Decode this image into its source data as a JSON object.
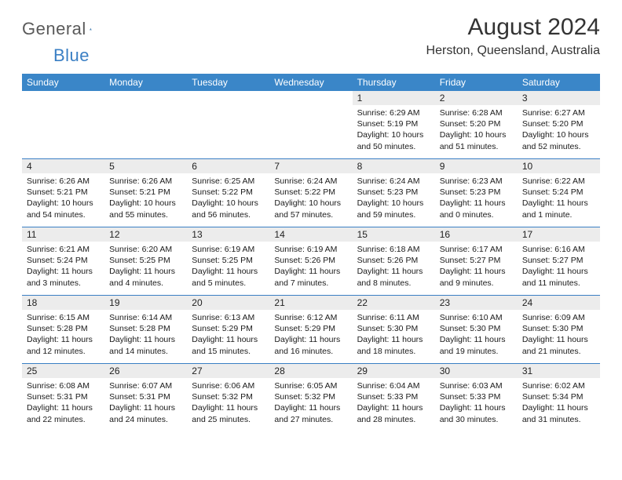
{
  "logo": {
    "word1": "General",
    "word2": "Blue"
  },
  "title": "August 2024",
  "location": "Herston, Queensland, Australia",
  "colors": {
    "header_bg": "#3a86c8",
    "daynum_bg": "#ececec",
    "rule": "#3a7fc4",
    "logo_gray": "#5a5a5a",
    "logo_blue": "#3a7fc4"
  },
  "weekdays": [
    "Sunday",
    "Monday",
    "Tuesday",
    "Wednesday",
    "Thursday",
    "Friday",
    "Saturday"
  ],
  "weeks": [
    [
      {
        "day": "",
        "sunrise": "",
        "sunset": "",
        "daylight": ""
      },
      {
        "day": "",
        "sunrise": "",
        "sunset": "",
        "daylight": ""
      },
      {
        "day": "",
        "sunrise": "",
        "sunset": "",
        "daylight": ""
      },
      {
        "day": "",
        "sunrise": "",
        "sunset": "",
        "daylight": ""
      },
      {
        "day": "1",
        "sunrise": "Sunrise: 6:29 AM",
        "sunset": "Sunset: 5:19 PM",
        "daylight": "Daylight: 10 hours and 50 minutes."
      },
      {
        "day": "2",
        "sunrise": "Sunrise: 6:28 AM",
        "sunset": "Sunset: 5:20 PM",
        "daylight": "Daylight: 10 hours and 51 minutes."
      },
      {
        "day": "3",
        "sunrise": "Sunrise: 6:27 AM",
        "sunset": "Sunset: 5:20 PM",
        "daylight": "Daylight: 10 hours and 52 minutes."
      }
    ],
    [
      {
        "day": "4",
        "sunrise": "Sunrise: 6:26 AM",
        "sunset": "Sunset: 5:21 PM",
        "daylight": "Daylight: 10 hours and 54 minutes."
      },
      {
        "day": "5",
        "sunrise": "Sunrise: 6:26 AM",
        "sunset": "Sunset: 5:21 PM",
        "daylight": "Daylight: 10 hours and 55 minutes."
      },
      {
        "day": "6",
        "sunrise": "Sunrise: 6:25 AM",
        "sunset": "Sunset: 5:22 PM",
        "daylight": "Daylight: 10 hours and 56 minutes."
      },
      {
        "day": "7",
        "sunrise": "Sunrise: 6:24 AM",
        "sunset": "Sunset: 5:22 PM",
        "daylight": "Daylight: 10 hours and 57 minutes."
      },
      {
        "day": "8",
        "sunrise": "Sunrise: 6:24 AM",
        "sunset": "Sunset: 5:23 PM",
        "daylight": "Daylight: 10 hours and 59 minutes."
      },
      {
        "day": "9",
        "sunrise": "Sunrise: 6:23 AM",
        "sunset": "Sunset: 5:23 PM",
        "daylight": "Daylight: 11 hours and 0 minutes."
      },
      {
        "day": "10",
        "sunrise": "Sunrise: 6:22 AM",
        "sunset": "Sunset: 5:24 PM",
        "daylight": "Daylight: 11 hours and 1 minute."
      }
    ],
    [
      {
        "day": "11",
        "sunrise": "Sunrise: 6:21 AM",
        "sunset": "Sunset: 5:24 PM",
        "daylight": "Daylight: 11 hours and 3 minutes."
      },
      {
        "day": "12",
        "sunrise": "Sunrise: 6:20 AM",
        "sunset": "Sunset: 5:25 PM",
        "daylight": "Daylight: 11 hours and 4 minutes."
      },
      {
        "day": "13",
        "sunrise": "Sunrise: 6:19 AM",
        "sunset": "Sunset: 5:25 PM",
        "daylight": "Daylight: 11 hours and 5 minutes."
      },
      {
        "day": "14",
        "sunrise": "Sunrise: 6:19 AM",
        "sunset": "Sunset: 5:26 PM",
        "daylight": "Daylight: 11 hours and 7 minutes."
      },
      {
        "day": "15",
        "sunrise": "Sunrise: 6:18 AM",
        "sunset": "Sunset: 5:26 PM",
        "daylight": "Daylight: 11 hours and 8 minutes."
      },
      {
        "day": "16",
        "sunrise": "Sunrise: 6:17 AM",
        "sunset": "Sunset: 5:27 PM",
        "daylight": "Daylight: 11 hours and 9 minutes."
      },
      {
        "day": "17",
        "sunrise": "Sunrise: 6:16 AM",
        "sunset": "Sunset: 5:27 PM",
        "daylight": "Daylight: 11 hours and 11 minutes."
      }
    ],
    [
      {
        "day": "18",
        "sunrise": "Sunrise: 6:15 AM",
        "sunset": "Sunset: 5:28 PM",
        "daylight": "Daylight: 11 hours and 12 minutes."
      },
      {
        "day": "19",
        "sunrise": "Sunrise: 6:14 AM",
        "sunset": "Sunset: 5:28 PM",
        "daylight": "Daylight: 11 hours and 14 minutes."
      },
      {
        "day": "20",
        "sunrise": "Sunrise: 6:13 AM",
        "sunset": "Sunset: 5:29 PM",
        "daylight": "Daylight: 11 hours and 15 minutes."
      },
      {
        "day": "21",
        "sunrise": "Sunrise: 6:12 AM",
        "sunset": "Sunset: 5:29 PM",
        "daylight": "Daylight: 11 hours and 16 minutes."
      },
      {
        "day": "22",
        "sunrise": "Sunrise: 6:11 AM",
        "sunset": "Sunset: 5:30 PM",
        "daylight": "Daylight: 11 hours and 18 minutes."
      },
      {
        "day": "23",
        "sunrise": "Sunrise: 6:10 AM",
        "sunset": "Sunset: 5:30 PM",
        "daylight": "Daylight: 11 hours and 19 minutes."
      },
      {
        "day": "24",
        "sunrise": "Sunrise: 6:09 AM",
        "sunset": "Sunset: 5:30 PM",
        "daylight": "Daylight: 11 hours and 21 minutes."
      }
    ],
    [
      {
        "day": "25",
        "sunrise": "Sunrise: 6:08 AM",
        "sunset": "Sunset: 5:31 PM",
        "daylight": "Daylight: 11 hours and 22 minutes."
      },
      {
        "day": "26",
        "sunrise": "Sunrise: 6:07 AM",
        "sunset": "Sunset: 5:31 PM",
        "daylight": "Daylight: 11 hours and 24 minutes."
      },
      {
        "day": "27",
        "sunrise": "Sunrise: 6:06 AM",
        "sunset": "Sunset: 5:32 PM",
        "daylight": "Daylight: 11 hours and 25 minutes."
      },
      {
        "day": "28",
        "sunrise": "Sunrise: 6:05 AM",
        "sunset": "Sunset: 5:32 PM",
        "daylight": "Daylight: 11 hours and 27 minutes."
      },
      {
        "day": "29",
        "sunrise": "Sunrise: 6:04 AM",
        "sunset": "Sunset: 5:33 PM",
        "daylight": "Daylight: 11 hours and 28 minutes."
      },
      {
        "day": "30",
        "sunrise": "Sunrise: 6:03 AM",
        "sunset": "Sunset: 5:33 PM",
        "daylight": "Daylight: 11 hours and 30 minutes."
      },
      {
        "day": "31",
        "sunrise": "Sunrise: 6:02 AM",
        "sunset": "Sunset: 5:34 PM",
        "daylight": "Daylight: 11 hours and 31 minutes."
      }
    ]
  ]
}
